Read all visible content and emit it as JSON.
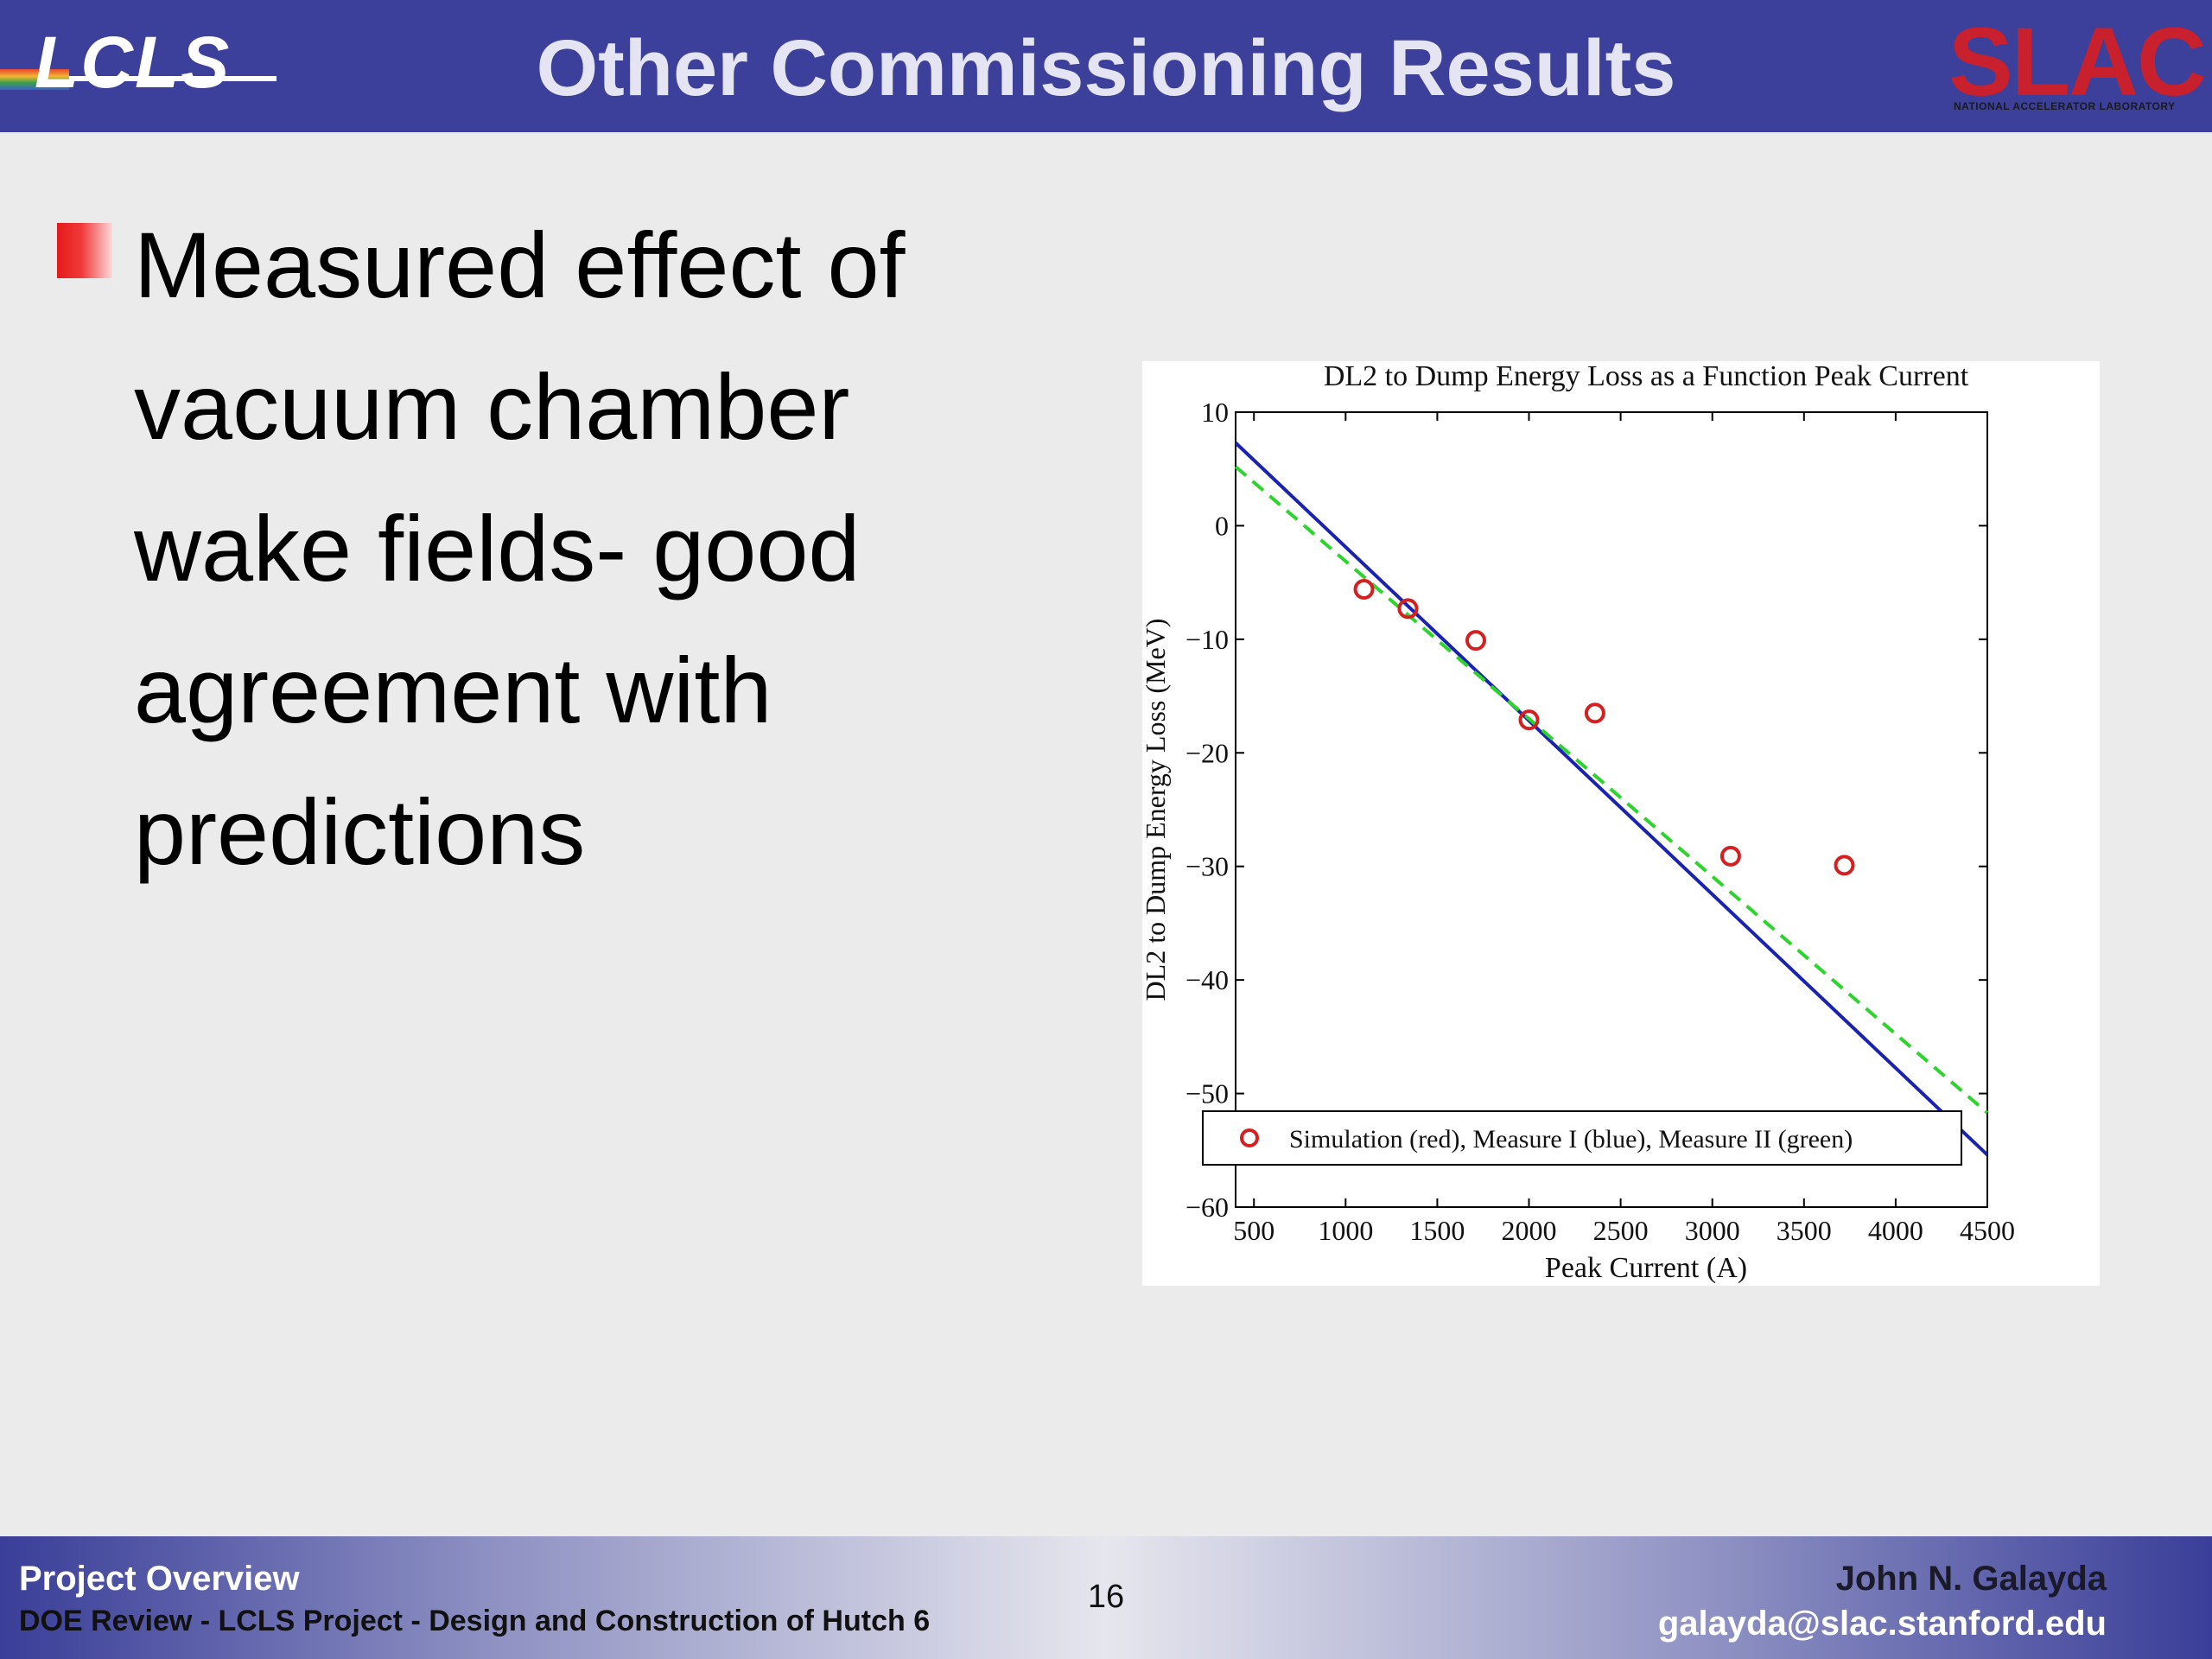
{
  "header": {
    "title": "Other Commissioning Results",
    "left_logo_text": "LCLS",
    "right_logo_text": "SLAC",
    "right_logo_subtext": "NATIONAL ACCELERATOR LABORATORY"
  },
  "body": {
    "bullet": "Measured effect of vacuum chamber wake fields- good agreement with predictions"
  },
  "chart_data": {
    "type": "scatter",
    "title": "DL2 to Dump Energy Loss as a Function Peak Current",
    "xlabel": "Peak Current (A)",
    "ylabel": "DL2 to Dump Energy Loss (MeV)",
    "xlim": [
      400,
      4500
    ],
    "ylim": [
      -60,
      10
    ],
    "xticks": [
      500,
      1000,
      1500,
      2000,
      2500,
      3000,
      3500,
      4000,
      4500
    ],
    "yticks": [
      10,
      0,
      -10,
      -20,
      -30,
      -40,
      -50,
      -60
    ],
    "grid": false,
    "legend": "bottom",
    "legend_text": "Simulation (red), Measure I (blue), Measure II (green)",
    "series": [
      {
        "name": "Simulation (red)",
        "style": "markers",
        "color": "#d42020",
        "points": [
          [
            1100,
            -5.6
          ],
          [
            1340,
            -7.3
          ],
          [
            1710,
            -10.1
          ],
          [
            2000,
            -17.1
          ],
          [
            2360,
            -16.5
          ],
          [
            3100,
            -29.1
          ],
          [
            3720,
            -29.9
          ]
        ]
      },
      {
        "style": "solid",
        "color": "#1a22b0",
        "points": [
          [
            400,
            7.3
          ],
          [
            4500,
            -55.4
          ]
        ]
      },
      {
        "style": "dashed",
        "color": "#2cd42c",
        "points": [
          [
            400,
            5.2
          ],
          [
            4500,
            -51.7
          ]
        ]
      }
    ]
  },
  "footer": {
    "left_line1": "Project Overview",
    "left_line2": "DOE Review - LCLS Project - Design and Construction of Hutch 6",
    "page_number": "16",
    "right_line1": "John N. Galayda",
    "right_line2": "galayda@slac.stanford.edu"
  }
}
